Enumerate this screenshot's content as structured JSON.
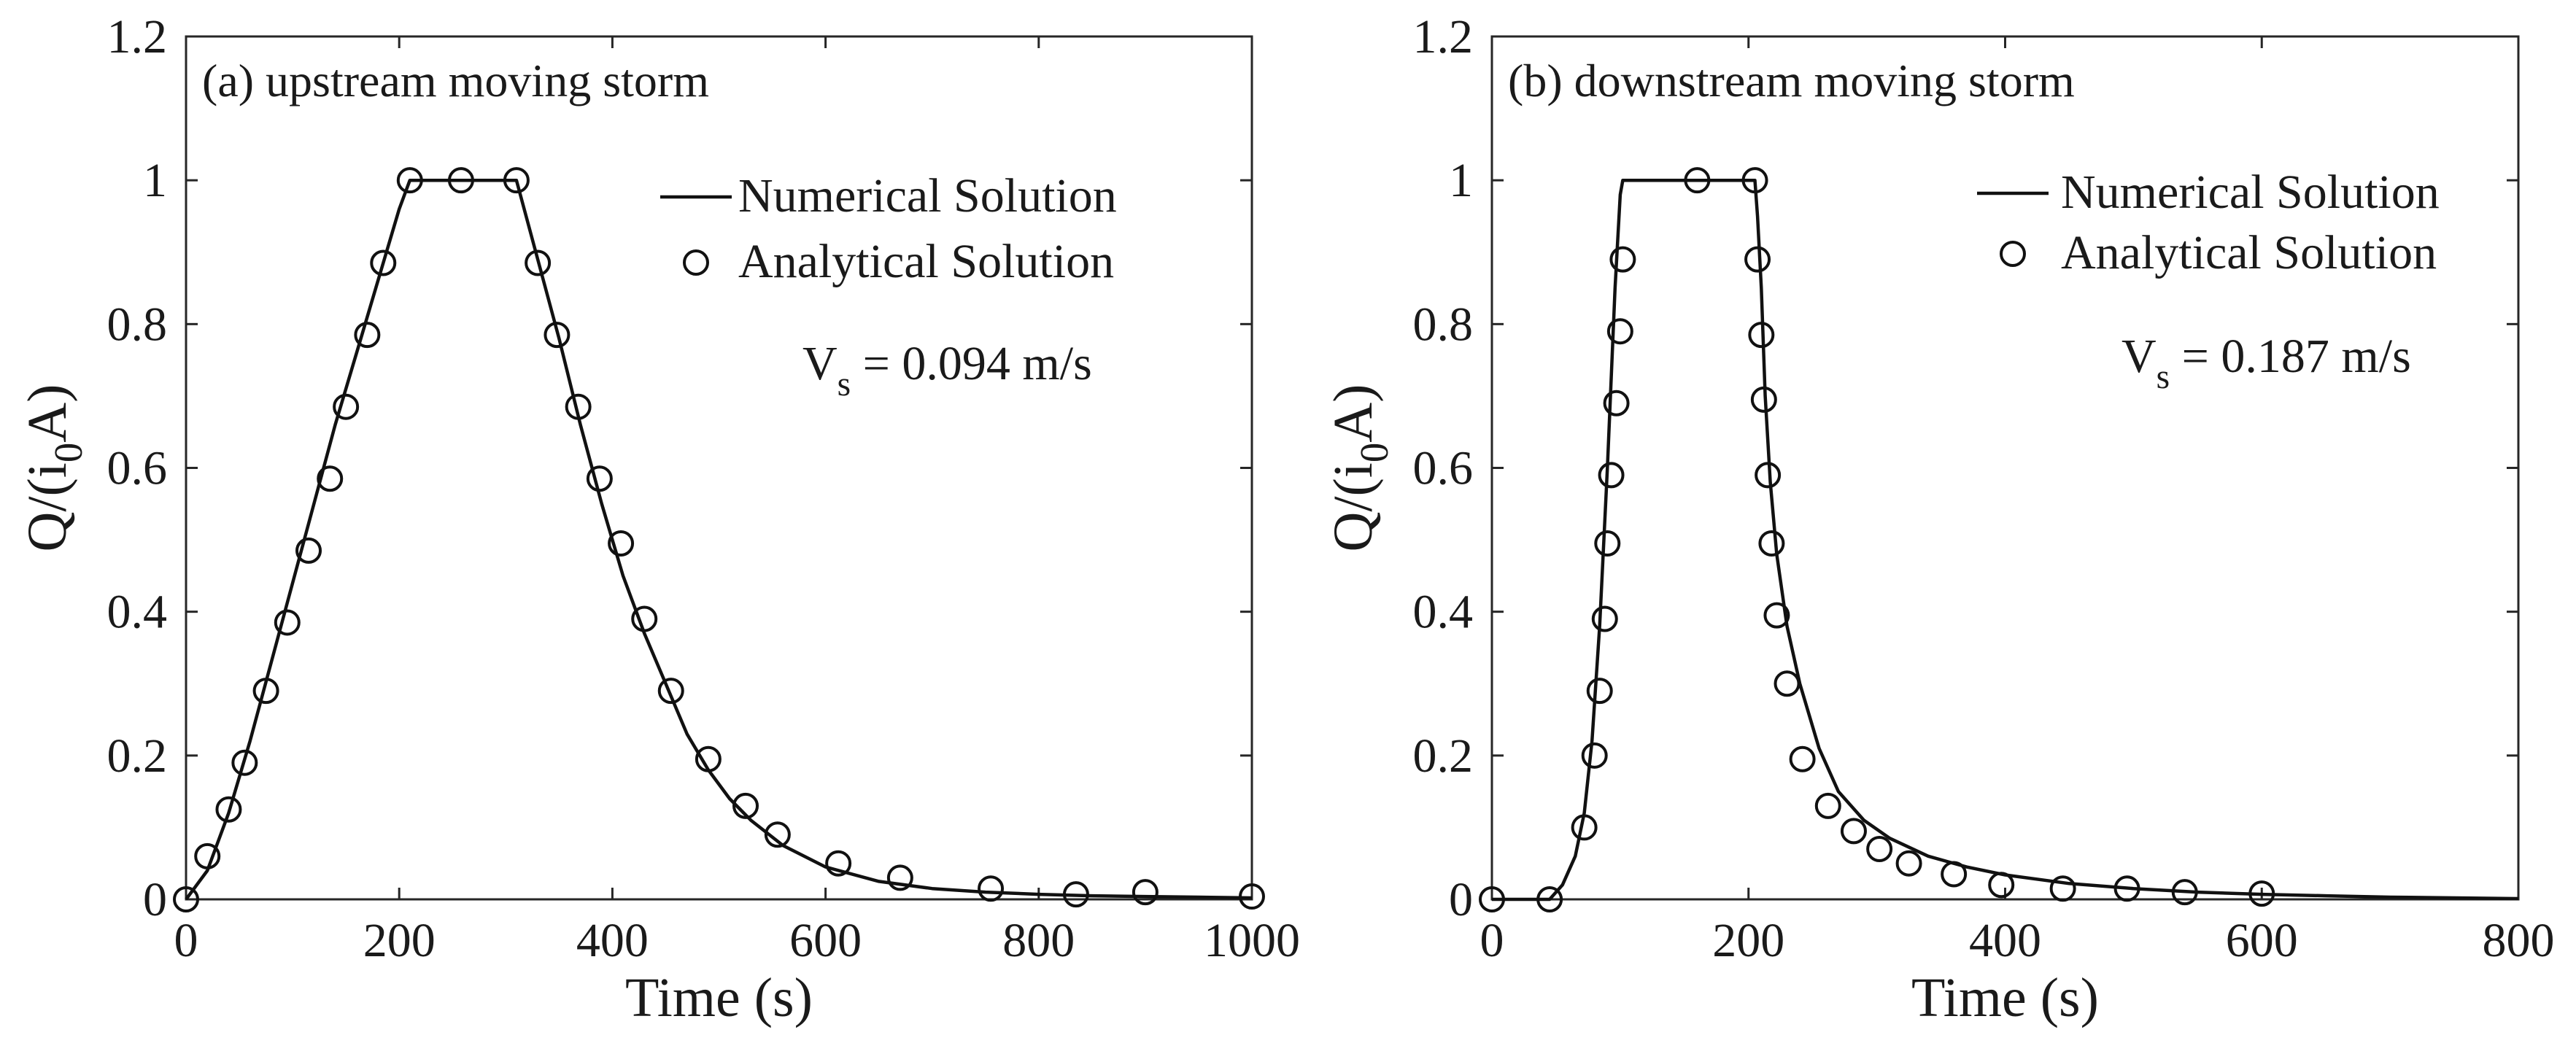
{
  "chart_data": [
    {
      "type": "line",
      "title": "(a) upstream moving storm",
      "xlabel": "Time (s)",
      "ylabel": "Q/(i0A)",
      "ylabel_parts": {
        "pre": "Q/(i",
        "sub": "0",
        "post": "A)"
      },
      "xlim": [
        0,
        1000
      ],
      "ylim": [
        0,
        1.2
      ],
      "xticks": [
        0,
        200,
        400,
        600,
        800,
        1000
      ],
      "xtick_labels": [
        "0",
        "200",
        "400",
        "600",
        "800",
        "1000"
      ],
      "yticks": [
        0,
        0.2,
        0.4,
        0.6,
        0.8,
        1,
        1.2
      ],
      "ytick_labels": [
        "0",
        "0.2",
        "0.4",
        "0.6",
        "0.8",
        "1",
        "1.2"
      ],
      "grid": false,
      "legend_position": "top-right",
      "annotation": {
        "text": "Vs = 0.094 m/s",
        "main": "V",
        "sub": "s",
        "rest": " = 0.094 m/s"
      },
      "series": [
        {
          "name": "Numerical Solution",
          "style": "line",
          "x": [
            0,
            20,
            40,
            60,
            80,
            100,
            120,
            140,
            160,
            180,
            200,
            210,
            260,
            310,
            330,
            350,
            370,
            390,
            410,
            430,
            450,
            470,
            490,
            510,
            530,
            560,
            600,
            650,
            700,
            750,
            800,
            850,
            900,
            950,
            1000
          ],
          "y": [
            0,
            0.04,
            0.12,
            0.22,
            0.33,
            0.44,
            0.55,
            0.66,
            0.76,
            0.86,
            0.96,
            1.0,
            1.0,
            1.0,
            0.89,
            0.78,
            0.66,
            0.55,
            0.45,
            0.37,
            0.3,
            0.23,
            0.18,
            0.14,
            0.11,
            0.075,
            0.045,
            0.025,
            0.015,
            0.01,
            0.007,
            0.005,
            0.004,
            0.003,
            0.002
          ]
        },
        {
          "name": "Analytical Solution",
          "style": "marker-circle",
          "x": [
            0,
            20,
            40,
            55,
            75,
            95,
            115,
            135,
            150,
            170,
            185,
            210,
            258,
            310,
            330,
            348,
            368,
            388,
            408,
            430,
            455,
            490,
            525,
            555,
            612,
            670,
            755,
            835,
            900,
            1000
          ],
          "y": [
            0,
            0.06,
            0.125,
            0.19,
            0.29,
            0.385,
            0.485,
            0.585,
            0.685,
            0.785,
            0.885,
            1.0,
            1.0,
            1.0,
            0.885,
            0.785,
            0.685,
            0.585,
            0.495,
            0.39,
            0.29,
            0.195,
            0.13,
            0.09,
            0.05,
            0.03,
            0.015,
            0.007,
            0.01,
            0.004
          ]
        }
      ]
    },
    {
      "type": "line",
      "title": "(b) downstream moving storm",
      "xlabel": "Time (s)",
      "ylabel": "Q/(i0A)",
      "ylabel_parts": {
        "pre": "Q/(i",
        "sub": "0",
        "post": "A)"
      },
      "xlim": [
        0,
        800
      ],
      "ylim": [
        0,
        1.2
      ],
      "xticks": [
        0,
        200,
        400,
        600,
        800
      ],
      "xtick_labels": [
        "0",
        "200",
        "400",
        "600",
        "800"
      ],
      "yticks": [
        0,
        0.2,
        0.4,
        0.6,
        0.8,
        1,
        1.2
      ],
      "ytick_labels": [
        "0",
        "0.2",
        "0.4",
        "0.6",
        "0.8",
        "1",
        "1.2"
      ],
      "grid": false,
      "legend_position": "top-right",
      "annotation": {
        "text": "Vs = 0.187 m/s",
        "main": "V",
        "sub": "s",
        "rest": " = 0.187 m/s"
      },
      "series": [
        {
          "name": "Numerical Solution",
          "style": "line",
          "x": [
            0,
            45,
            55,
            65,
            72,
            78,
            84,
            90,
            96,
            100,
            102,
            205,
            207,
            210,
            213,
            217,
            222,
            230,
            240,
            255,
            270,
            290,
            310,
            340,
            370,
            400,
            450,
            500,
            550,
            600,
            650,
            700,
            800
          ],
          "y": [
            0,
            0,
            0.02,
            0.06,
            0.12,
            0.22,
            0.38,
            0.6,
            0.85,
            0.98,
            1.0,
            1.0,
            0.95,
            0.85,
            0.7,
            0.58,
            0.48,
            0.38,
            0.3,
            0.21,
            0.15,
            0.11,
            0.085,
            0.06,
            0.045,
            0.034,
            0.022,
            0.015,
            0.01,
            0.007,
            0.005,
            0.003,
            0.001
          ]
        },
        {
          "name": "Analytical Solution",
          "style": "marker-circle",
          "x": [
            0,
            45,
            72,
            80,
            84,
            88,
            90,
            93,
            97,
            100,
            102,
            160,
            205,
            207,
            210,
            212,
            215,
            218,
            222,
            230,
            242,
            262,
            282,
            302,
            325,
            360,
            397,
            445,
            495,
            540,
            600
          ],
          "y": [
            0,
            0,
            0.1,
            0.2,
            0.29,
            0.39,
            0.495,
            0.59,
            0.69,
            0.79,
            0.89,
            1.0,
            1.0,
            0.89,
            0.785,
            0.695,
            0.59,
            0.495,
            0.395,
            0.3,
            0.195,
            0.13,
            0.095,
            0.07,
            0.05,
            0.035,
            0.02,
            0.015,
            0.015,
            0.01,
            0.008
          ]
        }
      ]
    }
  ]
}
